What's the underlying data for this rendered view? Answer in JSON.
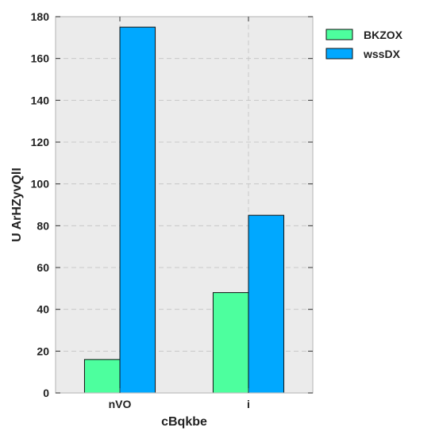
{
  "colors": {
    "plot_background": "#ebebeb",
    "grid": "#c8c8c8",
    "frame": "#bfbfbf",
    "bar_outline": "#111111",
    "series_colors": [
      "#4dff9e",
      "#00a8ff"
    ]
  },
  "chart_data": {
    "type": "bar",
    "title": "",
    "xlabel": "cBqkbe",
    "ylabel": "U ArHZyvQlI",
    "categories": [
      "nVO",
      "i"
    ],
    "series": [
      {
        "name": "BKZOX",
        "values": [
          16,
          48
        ]
      },
      {
        "name": "wssDX",
        "values": [
          175,
          85
        ]
      }
    ],
    "ylim": [
      0,
      180
    ],
    "yticks": [
      0,
      20,
      40,
      60,
      80,
      100,
      120,
      140,
      160,
      180
    ],
    "grid": true,
    "legend_position": "outside-top-right"
  }
}
